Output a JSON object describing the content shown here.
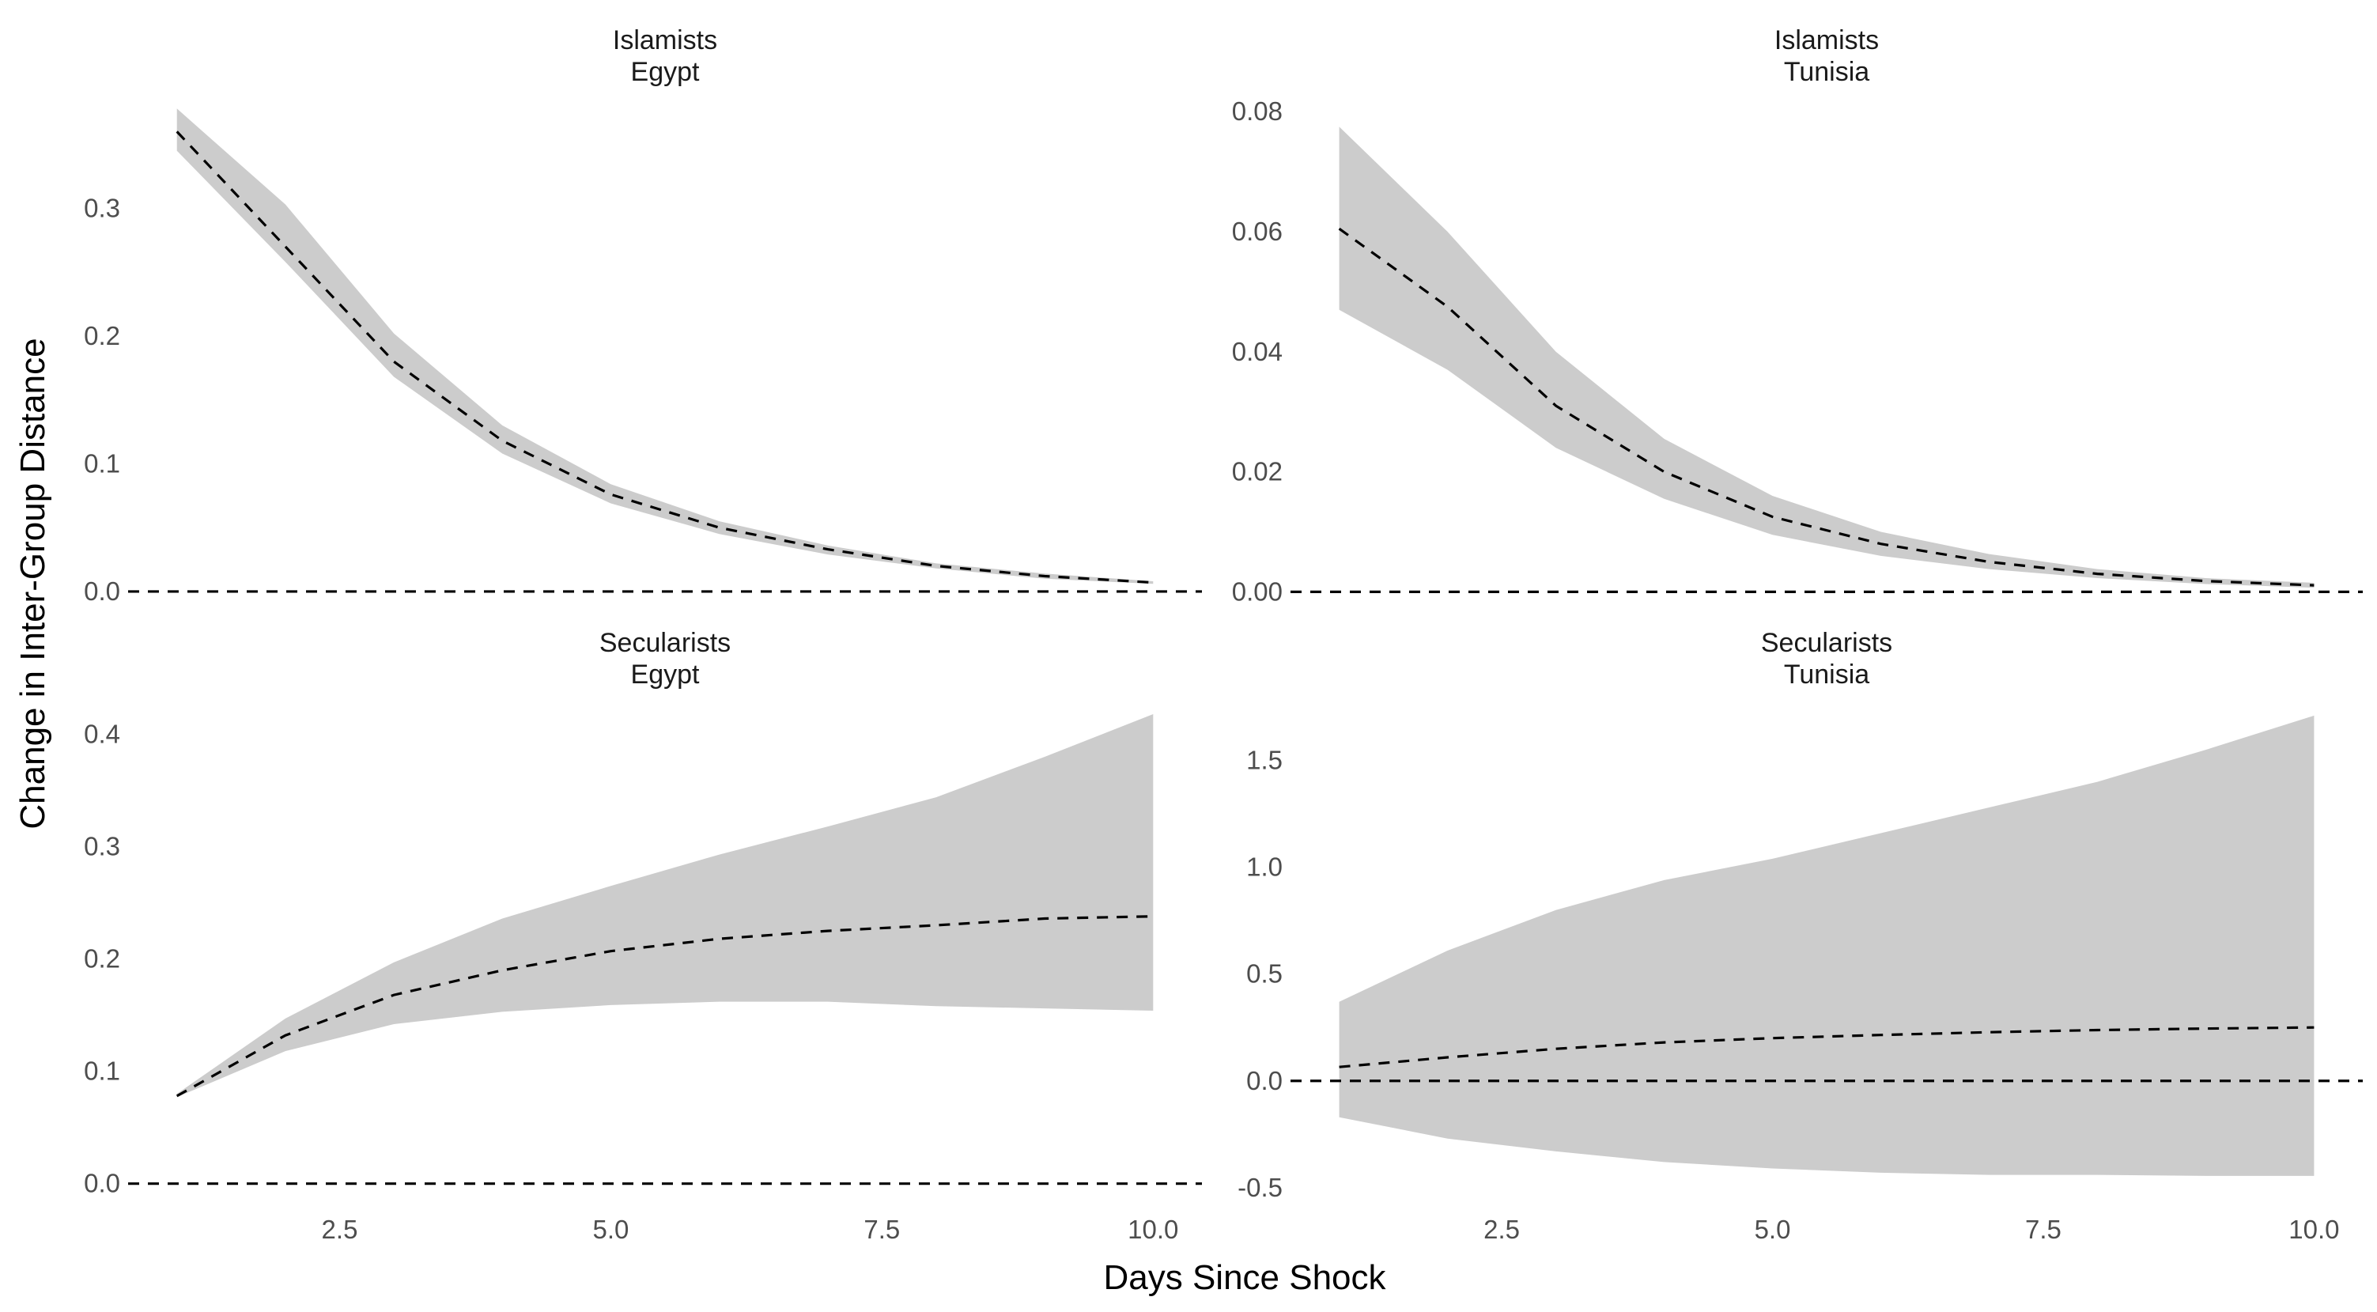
{
  "figure": {
    "xlabel": "Days Since Shock",
    "ylabel": "Change in Inter-Group Distance",
    "ribbon_color": "#cccccc",
    "line_color": "#000000",
    "reference_line_color": "#000000"
  },
  "chart_data": [
    {
      "type": "line",
      "title": "Islamists Egypt",
      "strip_lines": [
        "Islamists",
        "Egypt"
      ],
      "x": [
        1,
        2,
        3,
        4,
        5,
        6,
        7,
        8,
        9,
        10
      ],
      "series": [
        {
          "values": [
            0.36,
            0.27,
            0.18,
            0.118,
            0.076,
            0.05,
            0.033,
            0.02,
            0.012,
            0.007
          ],
          "lower": [
            0.345,
            0.258,
            0.168,
            0.108,
            0.069,
            0.045,
            0.029,
            0.018,
            0.01,
            0.006
          ],
          "upper": [
            0.378,
            0.303,
            0.202,
            0.13,
            0.084,
            0.055,
            0.036,
            0.022,
            0.014,
            0.008
          ]
        }
      ],
      "reference_y": 0,
      "xticks": [
        2.5,
        5.0,
        7.5,
        10.0
      ],
      "yticks": [
        0.0,
        0.1,
        0.2,
        0.3
      ],
      "ytick_labels": [
        "0.0",
        "0.1",
        "0.2",
        "0.3"
      ],
      "ylim": [
        -0.005,
        0.385
      ],
      "show_xticks": false
    },
    {
      "type": "line",
      "title": "Islamists Tunisia",
      "strip_lines": [
        "Islamists",
        "Tunisia"
      ],
      "x": [
        1,
        2,
        3,
        4,
        5,
        6,
        7,
        8,
        9,
        10
      ],
      "series": [
        {
          "values": [
            0.0605,
            0.0475,
            0.031,
            0.02,
            0.0125,
            0.008,
            0.005,
            0.003,
            0.0018,
            0.0011
          ],
          "lower": [
            0.047,
            0.037,
            0.024,
            0.0155,
            0.0095,
            0.006,
            0.0038,
            0.0023,
            0.0013,
            0.0007
          ],
          "upper": [
            0.0775,
            0.06,
            0.04,
            0.0255,
            0.016,
            0.01,
            0.0063,
            0.0038,
            0.0023,
            0.0015
          ]
        }
      ],
      "reference_y": 0,
      "xticks": [
        2.5,
        5.0,
        7.5,
        10.0
      ],
      "yticks": [
        0.0,
        0.02,
        0.04,
        0.06,
        0.08
      ],
      "ytick_labels": [
        "0.00",
        "0.02",
        "0.04",
        "0.06",
        "0.08"
      ],
      "ylim": [
        -0.001,
        0.082
      ],
      "show_xticks": false
    },
    {
      "type": "line",
      "title": "Secularists Egypt",
      "strip_lines": [
        "Secularists",
        "Egypt"
      ],
      "x": [
        1,
        2,
        3,
        4,
        5,
        6,
        7,
        8,
        9,
        10
      ],
      "series": [
        {
          "values": [
            0.078,
            0.132,
            0.168,
            0.19,
            0.207,
            0.218,
            0.225,
            0.23,
            0.236,
            0.238
          ],
          "lower": [
            0.077,
            0.118,
            0.142,
            0.153,
            0.159,
            0.162,
            0.162,
            0.158,
            0.156,
            0.154
          ],
          "upper": [
            0.08,
            0.147,
            0.197,
            0.236,
            0.265,
            0.293,
            0.318,
            0.344,
            0.38,
            0.418
          ]
        }
      ],
      "reference_y": 0,
      "xticks": [
        2.5,
        5.0,
        7.5,
        10.0
      ],
      "xtick_labels": [
        "2.5",
        "5.0",
        "7.5",
        "10.0"
      ],
      "yticks": [
        0.0,
        0.1,
        0.2,
        0.3,
        0.4
      ],
      "ytick_labels": [
        "0.0",
        "0.1",
        "0.2",
        "0.3",
        "0.4"
      ],
      "ylim": [
        -0.015,
        0.43
      ],
      "show_xticks": true
    },
    {
      "type": "line",
      "title": "Secularists Tunisia",
      "strip_lines": [
        "Secularists",
        "Tunisia"
      ],
      "x": [
        1,
        2,
        3,
        4,
        5,
        6,
        7,
        8,
        9,
        10
      ],
      "series": [
        {
          "values": [
            0.065,
            0.11,
            0.15,
            0.18,
            0.2,
            0.215,
            0.228,
            0.238,
            0.245,
            0.25
          ],
          "lower": [
            -0.17,
            -0.27,
            -0.33,
            -0.38,
            -0.41,
            -0.43,
            -0.44,
            -0.44,
            -0.445,
            -0.445
          ],
          "upper": [
            0.37,
            0.61,
            0.8,
            0.94,
            1.04,
            1.16,
            1.28,
            1.4,
            1.55,
            1.71
          ]
        }
      ],
      "reference_y": 0,
      "xticks": [
        2.5,
        5.0,
        7.5,
        10.0
      ],
      "xtick_labels": [
        "2.5",
        "5.0",
        "7.5",
        "10.0"
      ],
      "yticks": [
        -0.5,
        0.0,
        0.5,
        1.0,
        1.5
      ],
      "ytick_labels": [
        "-0.5",
        "0.0",
        "0.5",
        "1.0",
        "1.5"
      ],
      "ylim": [
        -0.56,
        1.78
      ],
      "show_xticks": true
    }
  ]
}
